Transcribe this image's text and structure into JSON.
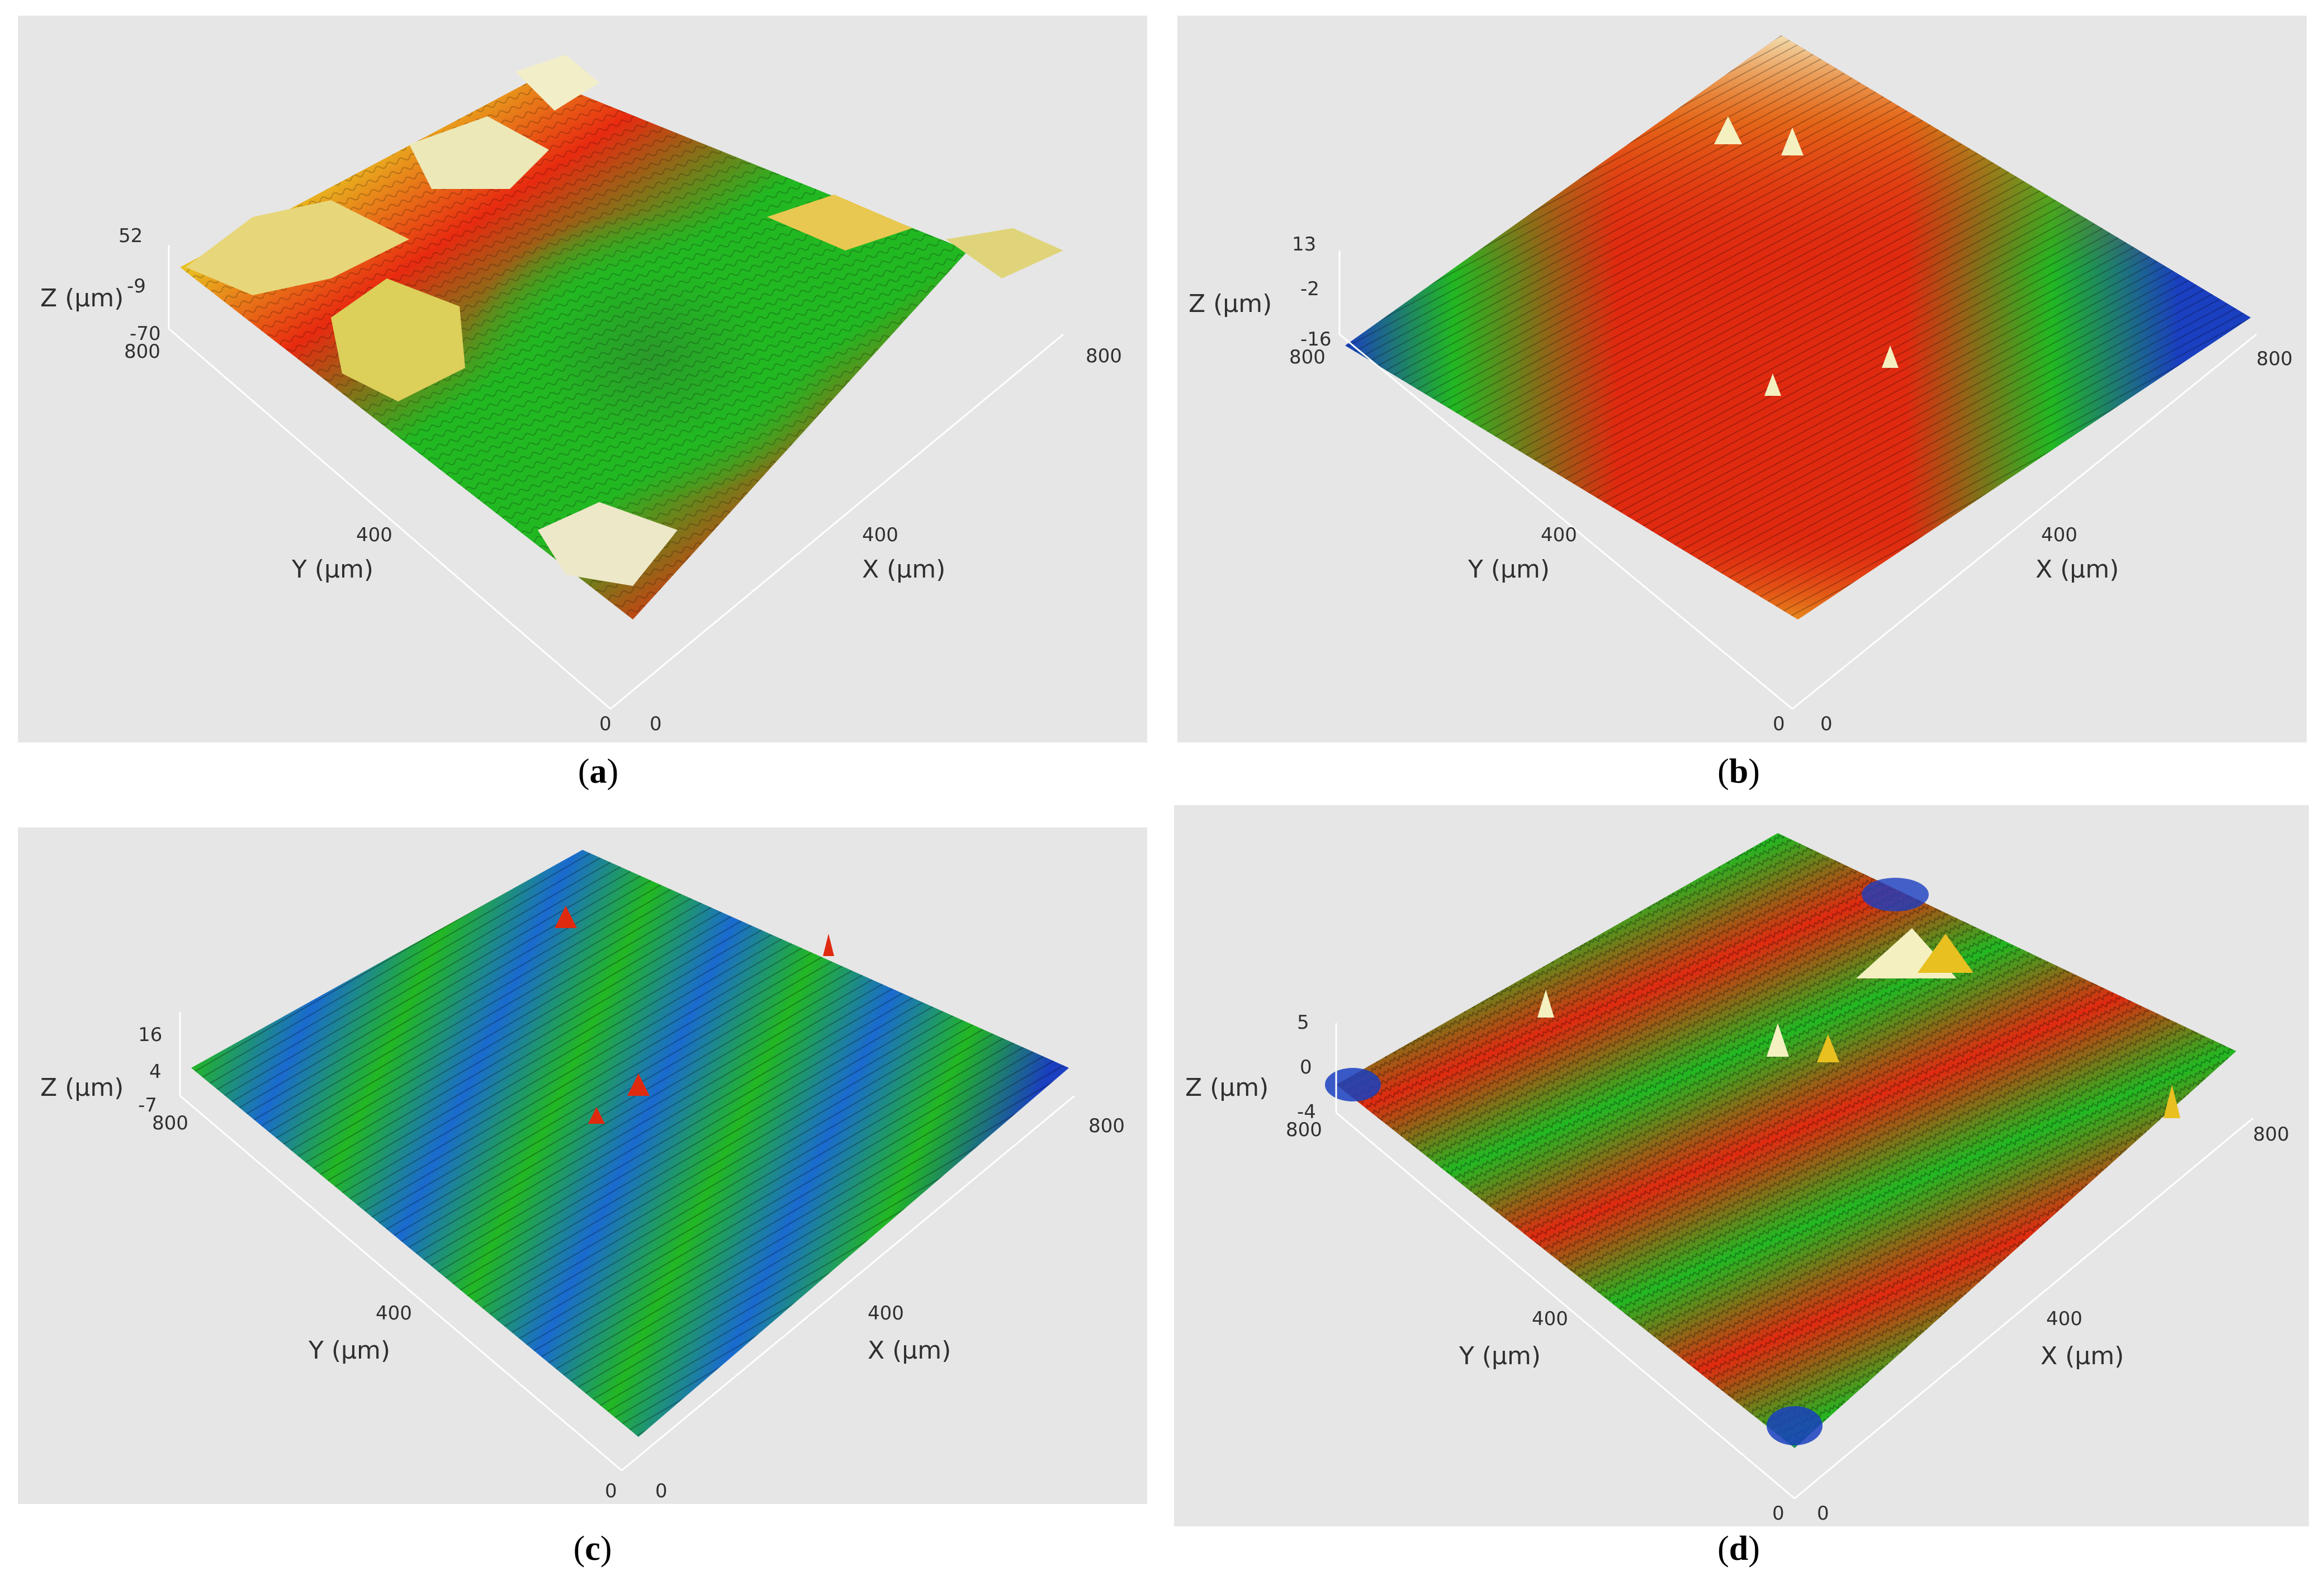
{
  "chart_data": [
    {
      "type": "surface3d",
      "panel": "a",
      "caption_letter": "a",
      "colors": [
        "#1a4fc8",
        "#22b822",
        "#e82a10",
        "#e8c020",
        "#f2eec8"
      ],
      "surface_character": "large plateaus with central depression",
      "z_label": "Z (µm)",
      "z_ticks": [
        "52",
        "-9",
        "-70"
      ],
      "x_label": "X (µm)",
      "x_ticks": [
        "0",
        "400",
        "800"
      ],
      "y_label": "Y (µm)",
      "y_ticks": [
        "0",
        "400",
        "800"
      ]
    },
    {
      "type": "surface3d",
      "panel": "b",
      "caption_letter": "b",
      "colors": [
        "#1a3fc0",
        "#22b822",
        "#e02a10",
        "#e8a020",
        "#f4f0c0"
      ],
      "surface_character": "fine parallel tracks, mostly red",
      "z_label": "Z (µm)",
      "z_ticks": [
        "13",
        "-2",
        "-16"
      ],
      "x_label": "X (µm)",
      "x_ticks": [
        "0",
        "400",
        "800"
      ],
      "y_label": "Y (µm)",
      "y_ticks": [
        "0",
        "400",
        "800"
      ]
    },
    {
      "type": "surface3d",
      "panel": "c",
      "caption_letter": "c",
      "colors": [
        "#1a3fc0",
        "#22b822",
        "#e02a10"
      ],
      "surface_character": "regular parallel ridges, blue-green",
      "z_label": "Z (µm)",
      "z_ticks": [
        "16",
        "4",
        "-7"
      ],
      "x_label": "X (µm)",
      "x_ticks": [
        "0",
        "400",
        "800"
      ],
      "y_label": "Y (µm)",
      "y_ticks": [
        "0",
        "400",
        "800"
      ]
    },
    {
      "type": "surface3d",
      "panel": "d",
      "caption_letter": "d",
      "colors": [
        "#1a3fc0",
        "#22b822",
        "#e02a10",
        "#f4f0c0"
      ],
      "surface_character": "wavy ridges with sharp peaks",
      "z_label": "Z (µm)",
      "z_ticks": [
        "5",
        "0",
        "-4"
      ],
      "x_label": "X (µm)",
      "x_ticks": [
        "0",
        "400",
        "800"
      ],
      "y_label": "Y (µm)",
      "y_ticks": [
        "0",
        "400",
        "800"
      ]
    }
  ]
}
